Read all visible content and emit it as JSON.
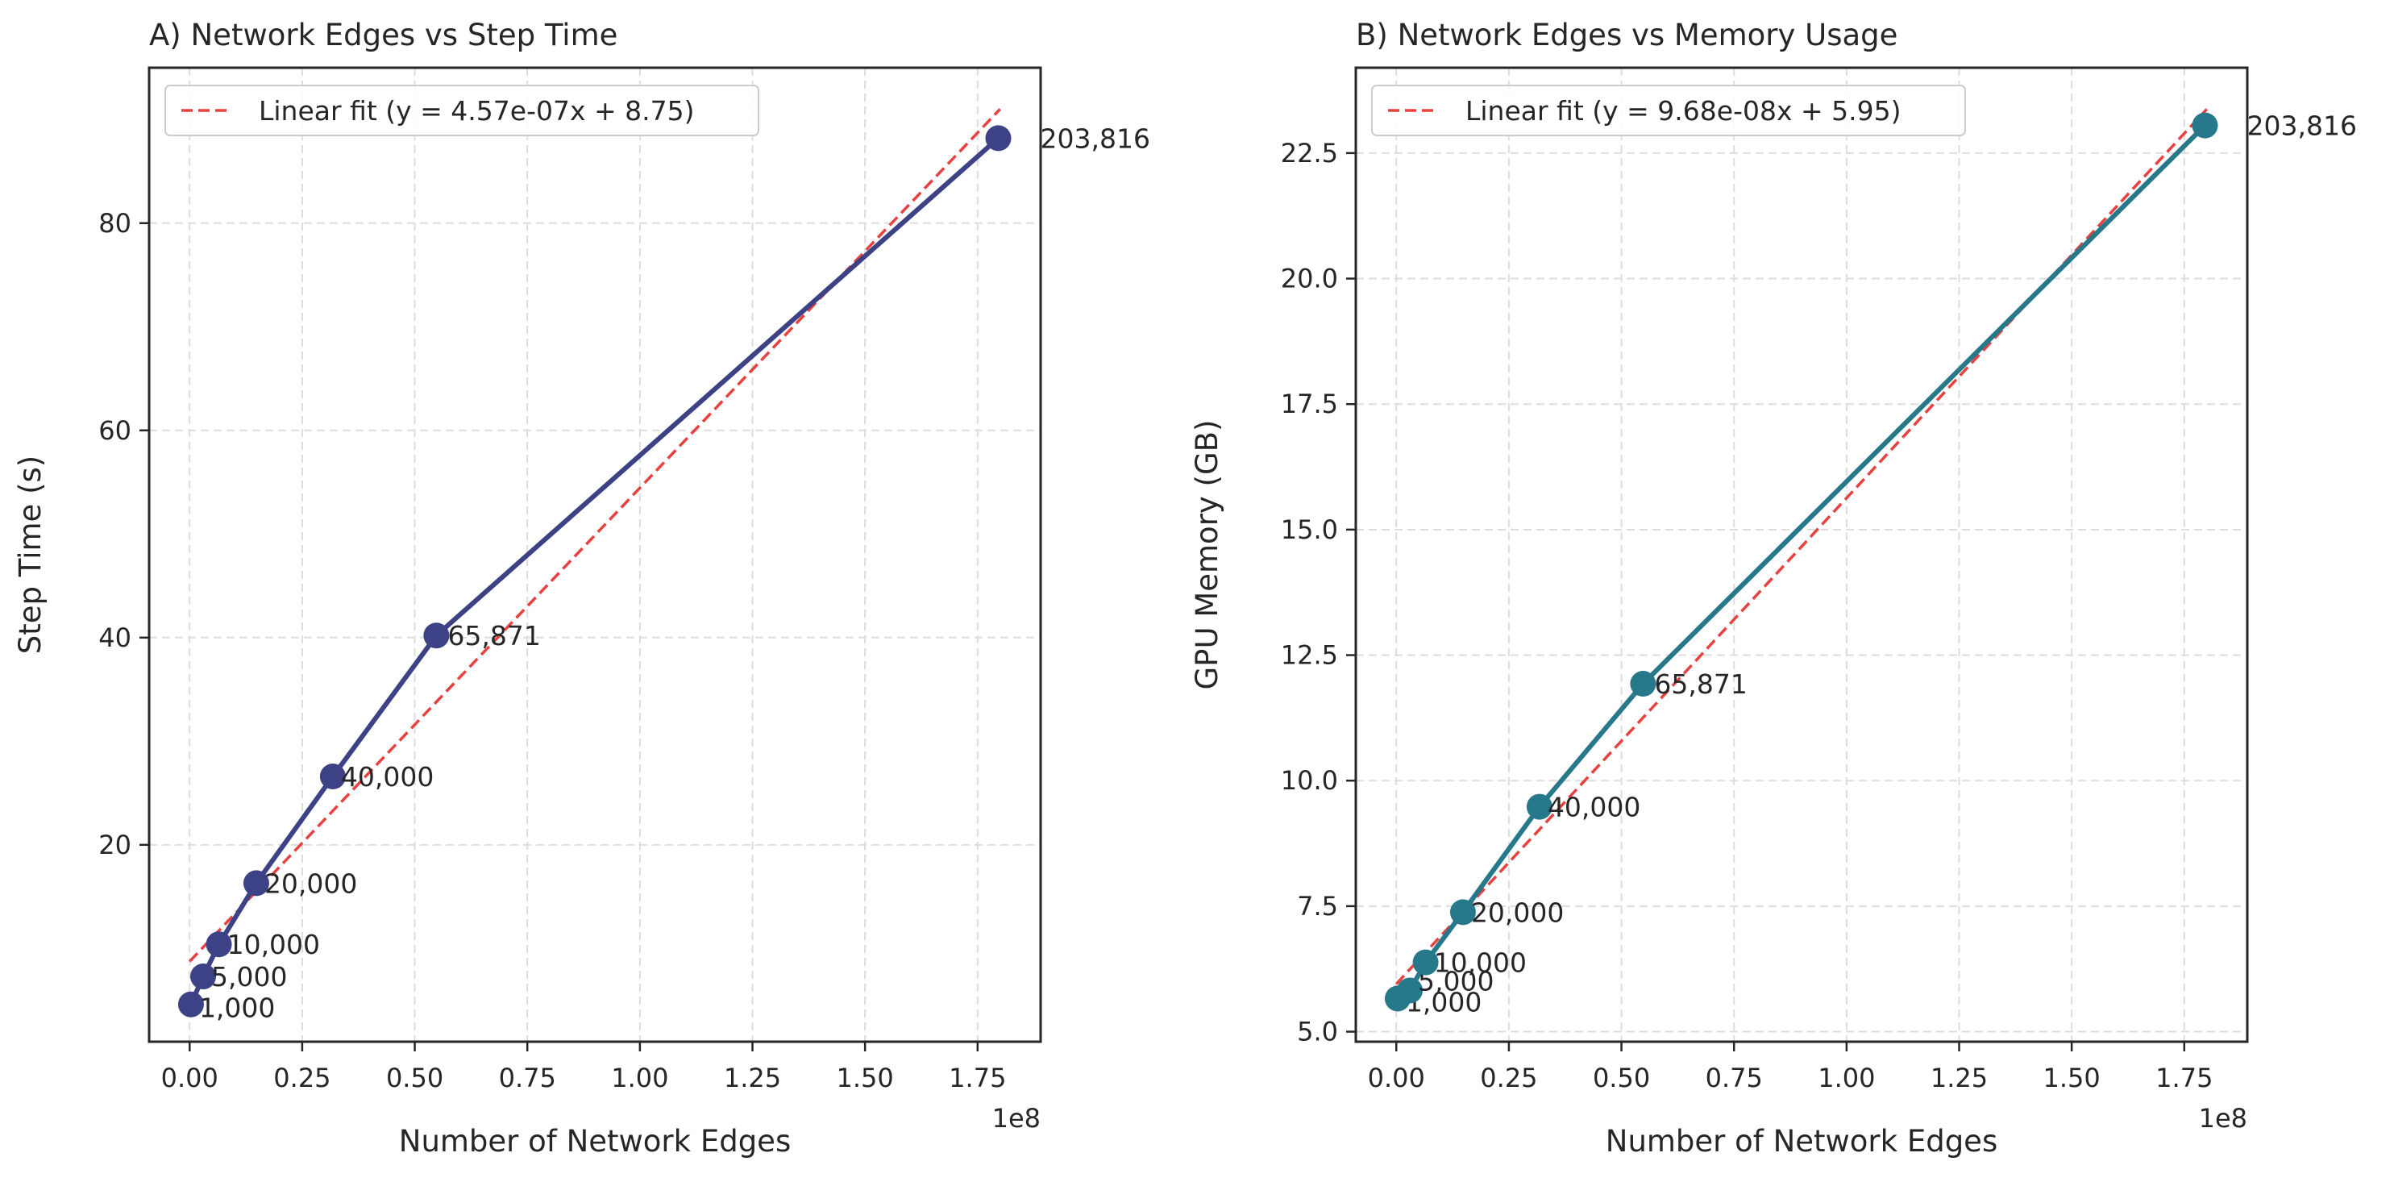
{
  "colors": {
    "fit_line": "#e8413e",
    "panel_a": "#3c4285",
    "panel_b": "#28788c",
    "grid": "#dddddd",
    "spine": "#262626"
  },
  "chart_data": [
    {
      "type": "line",
      "title": "A) Network Edges vs Step Time",
      "xlabel": "Number of Network Edges",
      "ylabel": "Step Time (s)",
      "x_offset_label": "1e8",
      "xlim": [
        -9000000,
        189000000
      ],
      "ylim": [
        1,
        95
      ],
      "xticks": [
        0,
        25000000,
        50000000,
        75000000,
        100000000,
        125000000,
        150000000,
        175000000
      ],
      "xtick_labels": [
        "0.00",
        "0.25",
        "0.50",
        "0.75",
        "1.00",
        "1.25",
        "1.50",
        "1.75"
      ],
      "yticks": [
        20,
        40,
        60,
        80
      ],
      "ytick_labels": [
        "20",
        "40",
        "60",
        "80"
      ],
      "grid": true,
      "legend_position": "top-left",
      "series": [
        {
          "x": [
            300000,
            3000000,
            6500000,
            14800000,
            31800000,
            54800000,
            179600000
          ],
          "y": [
            4.6,
            7.3,
            10.4,
            16.3,
            26.6,
            40.2,
            88.2
          ],
          "labels": [
            "1,000",
            "5,000",
            "10,000",
            "20,000",
            "40,000",
            "65,871",
            "203,816"
          ]
        }
      ],
      "fit": {
        "label": "Linear fit (y = 4.57e-07x + 8.75)",
        "slope": 4.57e-07,
        "intercept": 8.75,
        "x_range": [
          0,
          180000000
        ]
      }
    },
    {
      "type": "line",
      "title": "B) Network Edges vs Memory Usage",
      "xlabel": "Number of Network Edges",
      "ylabel": "GPU Memory (GB)",
      "x_offset_label": "1e8",
      "xlim": [
        -9000000,
        189000000
      ],
      "ylim": [
        4.8,
        24.2
      ],
      "xticks": [
        0,
        25000000,
        50000000,
        75000000,
        100000000,
        125000000,
        150000000,
        175000000
      ],
      "xtick_labels": [
        "0.00",
        "0.25",
        "0.50",
        "0.75",
        "1.00",
        "1.25",
        "1.50",
        "1.75"
      ],
      "yticks": [
        5.0,
        7.5,
        10.0,
        12.5,
        15.0,
        17.5,
        20.0,
        22.5
      ],
      "ytick_labels": [
        "5.0",
        "7.5",
        "10.0",
        "12.5",
        "15.0",
        "17.5",
        "20.0",
        "22.5"
      ],
      "grid": true,
      "legend_position": "top-left",
      "series": [
        {
          "x": [
            300000,
            3000000,
            6500000,
            14800000,
            31800000,
            54800000,
            179600000
          ],
          "y": [
            5.66,
            5.82,
            6.38,
            7.38,
            9.48,
            11.93,
            23.05
          ],
          "labels": [
            "1,000",
            "5,000",
            "10,000",
            "20,000",
            "40,000",
            "65,871",
            "203,816"
          ]
        }
      ],
      "fit": {
        "label": "Linear fit (y = 9.68e-08x + 5.95)",
        "slope": 9.68e-08,
        "intercept": 5.95,
        "x_range": [
          0,
          180000000
        ]
      }
    }
  ]
}
